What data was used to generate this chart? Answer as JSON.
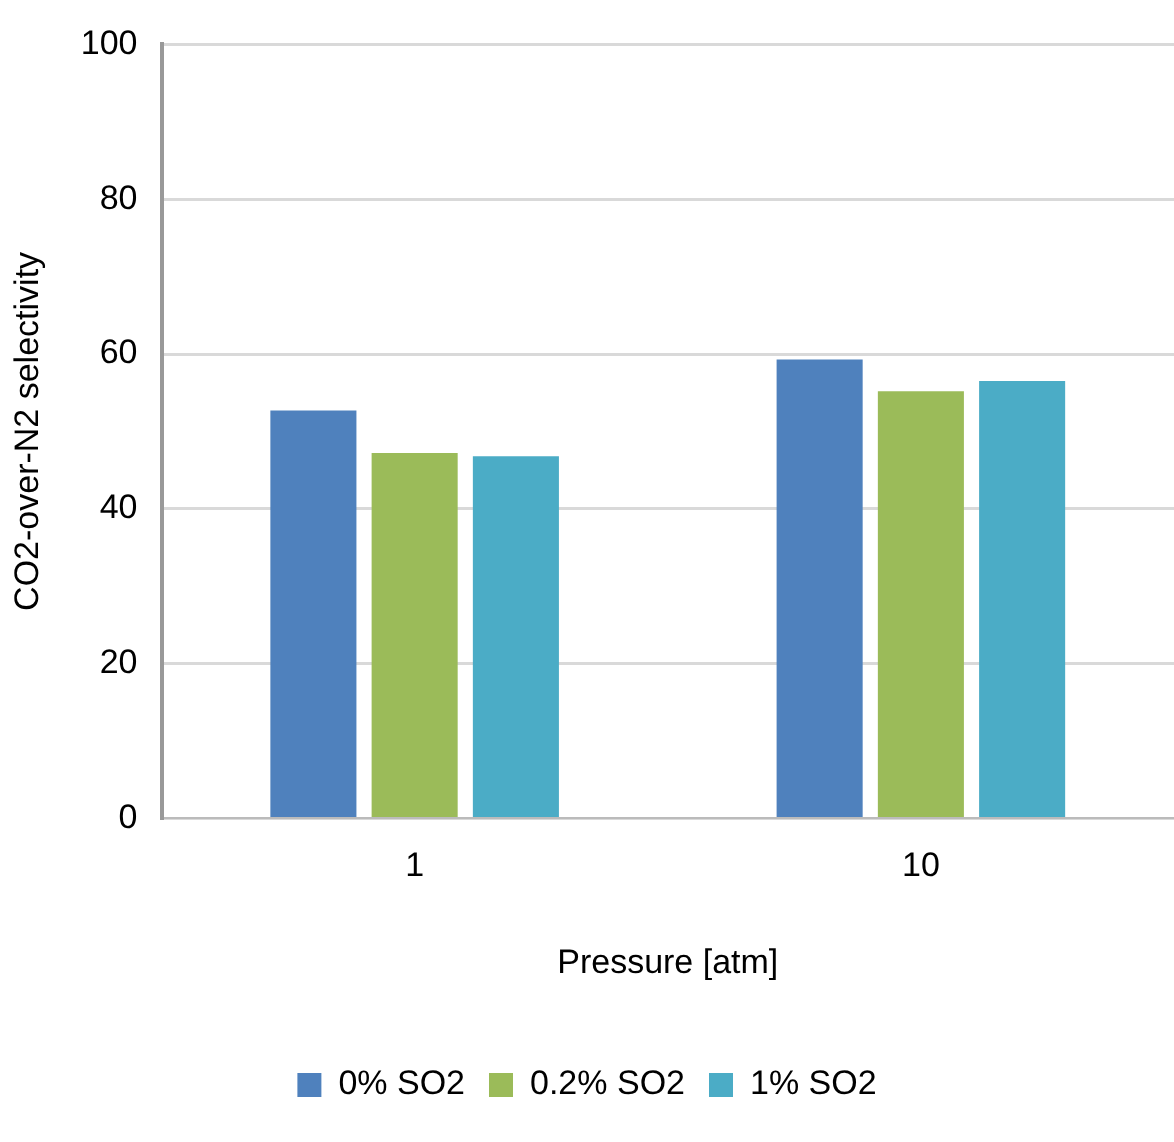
{
  "chart_data": {
    "type": "bar",
    "xlabel": "Pressure [atm]",
    "ylabel": "CO2-over-N2 selectivity",
    "categories": [
      "1",
      "10"
    ],
    "series": [
      {
        "name": "0% SO2",
        "color": "#4f81bd",
        "values": [
          52.7,
          59.3
        ]
      },
      {
        "name": "0.2% SO2",
        "color": "#9bbb59",
        "values": [
          47.2,
          55.2
        ]
      },
      {
        "name": "1% SO2",
        "color": "#4bacc6",
        "values": [
          46.8,
          56.5
        ]
      }
    ],
    "ylim": [
      0,
      100
    ],
    "yticks": [
      0,
      20,
      40,
      60,
      80,
      100
    ],
    "grid": "y",
    "legend": "bottom"
  }
}
